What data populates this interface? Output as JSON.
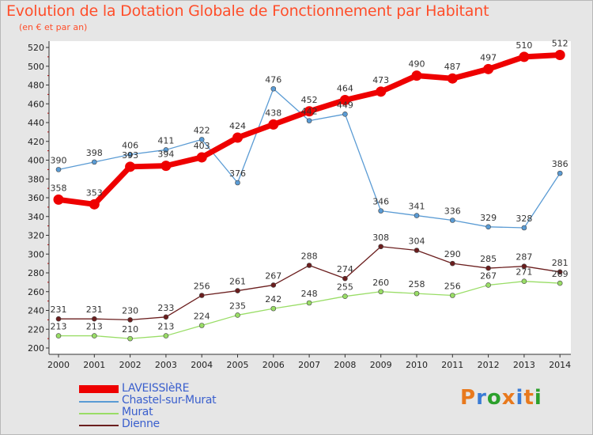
{
  "title": "Evolution de la Dotation Globale de Fonctionnement par Habitant",
  "subtitle": "(en € et par an)",
  "logo": {
    "letters": [
      "P",
      "r",
      "o",
      "x",
      "i",
      "t",
      "i"
    ],
    "colors": [
      "#e8791d",
      "#3a7bd5",
      "#2ca02c",
      "#e8791d",
      "#3a7bd5",
      "#e8791d",
      "#2ca02c"
    ]
  },
  "chart_data": {
    "type": "line",
    "title": "Evolution de la Dotation Globale de Fonctionnement par Habitant",
    "subtitle": "(en € et par an)",
    "xlabel": "",
    "ylabel": "",
    "x": [
      "2000",
      "2001",
      "2002",
      "2003",
      "2004",
      "2005",
      "2006",
      "2007",
      "2008",
      "2009",
      "2010",
      "2011",
      "2012",
      "2013",
      "2014"
    ],
    "ylim": [
      200,
      520
    ],
    "yticks": [
      200,
      220,
      240,
      260,
      280,
      300,
      320,
      340,
      360,
      380,
      400,
      420,
      440,
      460,
      480,
      500,
      520
    ],
    "grid": false,
    "legend_position": "bottom-left",
    "series": [
      {
        "name": "LAVEISSIèRE",
        "color": "#ee0000",
        "values": [
          358,
          353,
          393,
          394,
          403,
          424,
          438,
          452,
          464,
          473,
          490,
          487,
          497,
          510,
          512
        ],
        "labels": [
          "358",
          "353",
          "393",
          "394",
          "403",
          "424",
          "438",
          "452",
          "464",
          "473",
          "490",
          "487",
          "497",
          "510",
          "512"
        ]
      },
      {
        "name": "Chastel-sur-Murat",
        "color": "#5a9bd4",
        "values": [
          390,
          398,
          406,
          411,
          422,
          376,
          476,
          442,
          449,
          346,
          341,
          336,
          329,
          328,
          386
        ],
        "labels": [
          "390",
          "398",
          "406",
          "411",
          "422",
          "376",
          "476",
          "442",
          "449",
          "346",
          "341",
          "336",
          "329",
          "328",
          "386"
        ]
      },
      {
        "name": "Murat",
        "color": "#99dd66",
        "values": [
          213,
          213,
          210,
          213,
          224,
          235,
          242,
          248,
          255,
          260,
          258,
          256,
          267,
          271,
          269
        ],
        "labels": [
          "213",
          "213",
          "210",
          "213",
          "224",
          "235",
          "242",
          "248",
          "255",
          "260",
          "258",
          "256",
          "267",
          "271",
          "269"
        ]
      },
      {
        "name": "Dienne",
        "color": "#6b1e1e",
        "values": [
          231,
          231,
          230,
          233,
          256,
          261,
          267,
          288,
          274,
          308,
          304,
          290,
          285,
          287,
          281
        ],
        "labels": [
          "231",
          "231",
          "230",
          "233",
          "256",
          "261",
          "267",
          "288",
          "274",
          "308",
          "304",
          "290",
          "285",
          "287",
          "281"
        ]
      }
    ]
  }
}
